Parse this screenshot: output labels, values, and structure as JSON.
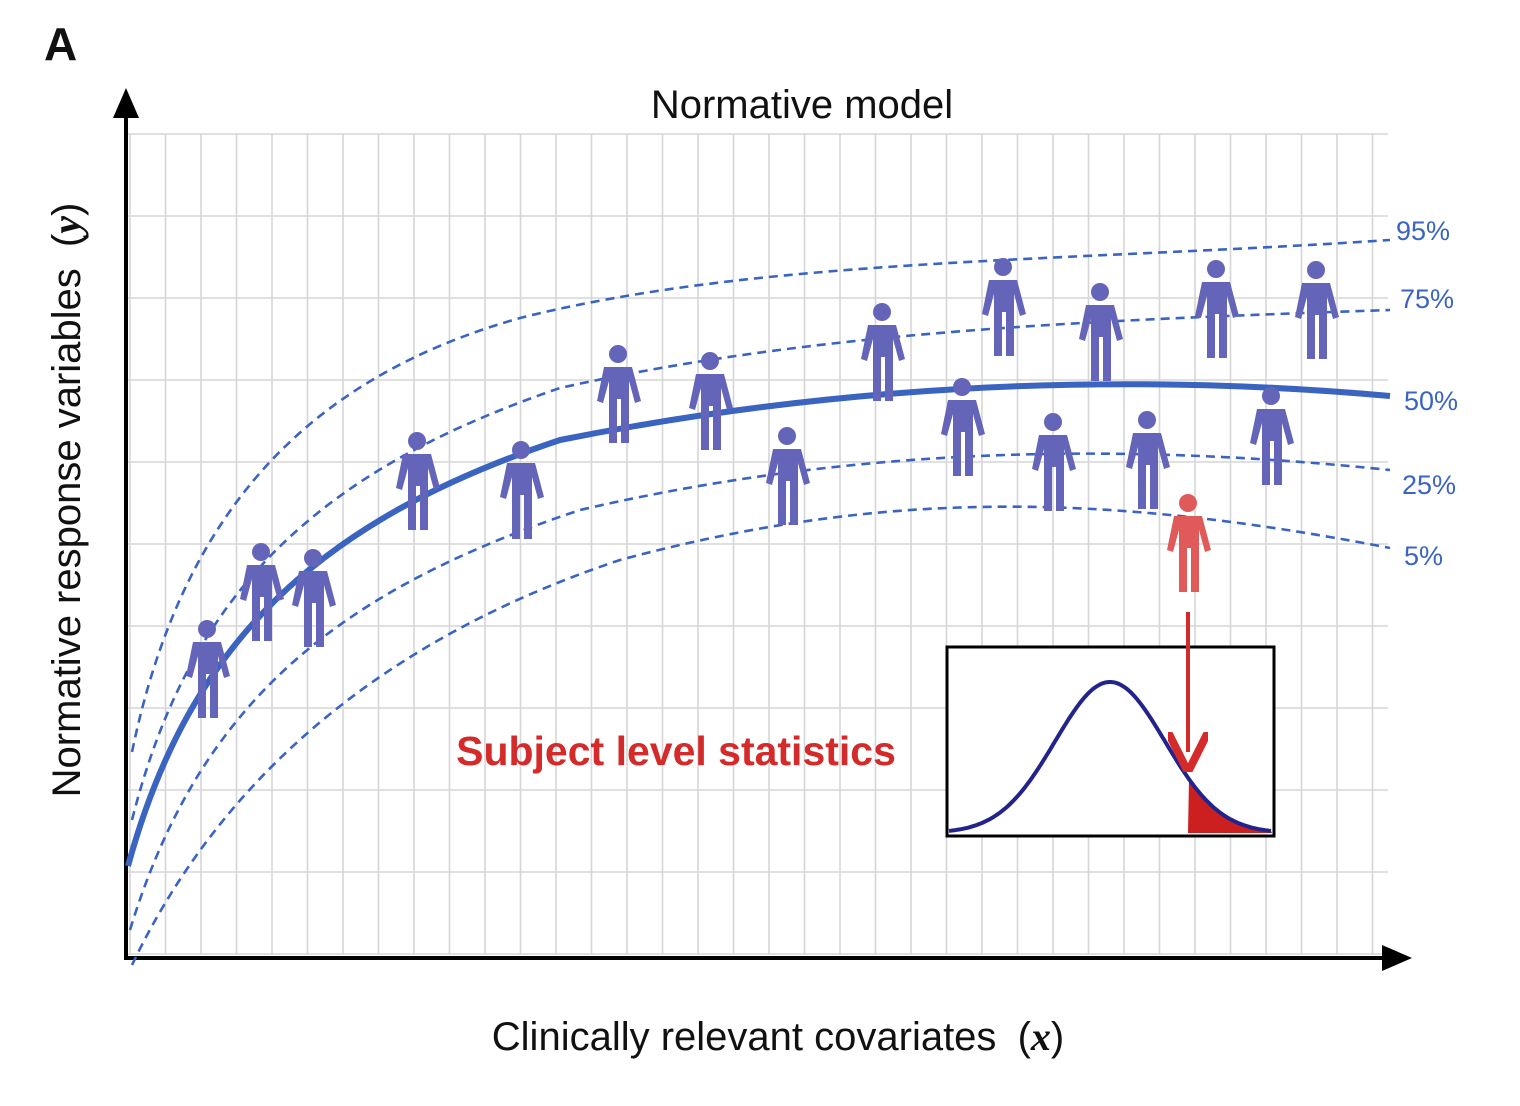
{
  "panel_label": "A",
  "title": "Normative model",
  "x_axis": {
    "label": "Clinically relevant covariates",
    "var": "x",
    "open": "(",
    "close": ")"
  },
  "y_axis": {
    "label": "Normative response variables",
    "var": "y",
    "open": "(",
    "close": ")"
  },
  "centiles": [
    {
      "label": "95%",
      "style": "dashed"
    },
    {
      "label": "75%",
      "style": "dashed"
    },
    {
      "label": "50%",
      "style": "solid"
    },
    {
      "label": "25%",
      "style": "dashed"
    },
    {
      "label": "5%",
      "style": "dashed"
    }
  ],
  "annotation": "Subject level statistics",
  "colors": {
    "curve": "#3a64c0",
    "label": "#3a64c0",
    "person": "#6464b8",
    "subject": "#e05a5a",
    "annotation": "#d42a2a",
    "grid": "#d6d6d6",
    "axis": "#000000",
    "density": "#23238c",
    "tail": "#cc1f1f"
  }
}
